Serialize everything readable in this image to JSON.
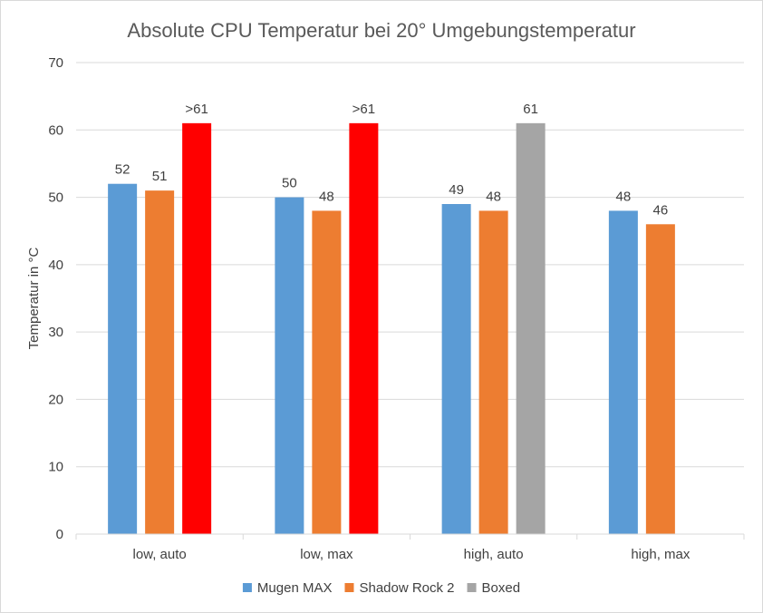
{
  "chart_data": {
    "type": "bar",
    "title": "Absolute CPU Temperatur bei 20° Umgebungstemperatur",
    "xlabel": "",
    "ylabel": "Temperatur in °C",
    "ylim": [
      0,
      70
    ],
    "yticks": [
      0,
      10,
      20,
      30,
      40,
      50,
      60,
      70
    ],
    "grid": true,
    "legend_position": "bottom",
    "categories": [
      "low, auto",
      "low, max",
      "high, auto",
      "high, max"
    ],
    "series": [
      {
        "name": "Mugen MAX",
        "color": "#5b9bd5",
        "values": [
          52,
          50,
          49,
          48
        ],
        "labels": [
          "52",
          "50",
          "49",
          "48"
        ]
      },
      {
        "name": "Shadow Rock 2",
        "color": "#ed7d31",
        "values": [
          51,
          48,
          48,
          46
        ],
        "labels": [
          "51",
          "48",
          "48",
          "46"
        ]
      },
      {
        "name": "Boxed",
        "color": "#a5a5a5",
        "values": [
          61,
          61,
          61,
          null
        ],
        "labels": [
          ">61",
          ">61",
          "61",
          ""
        ],
        "point_colors": [
          "#ff0000",
          "#ff0000",
          "#a5a5a5",
          null
        ]
      }
    ]
  }
}
